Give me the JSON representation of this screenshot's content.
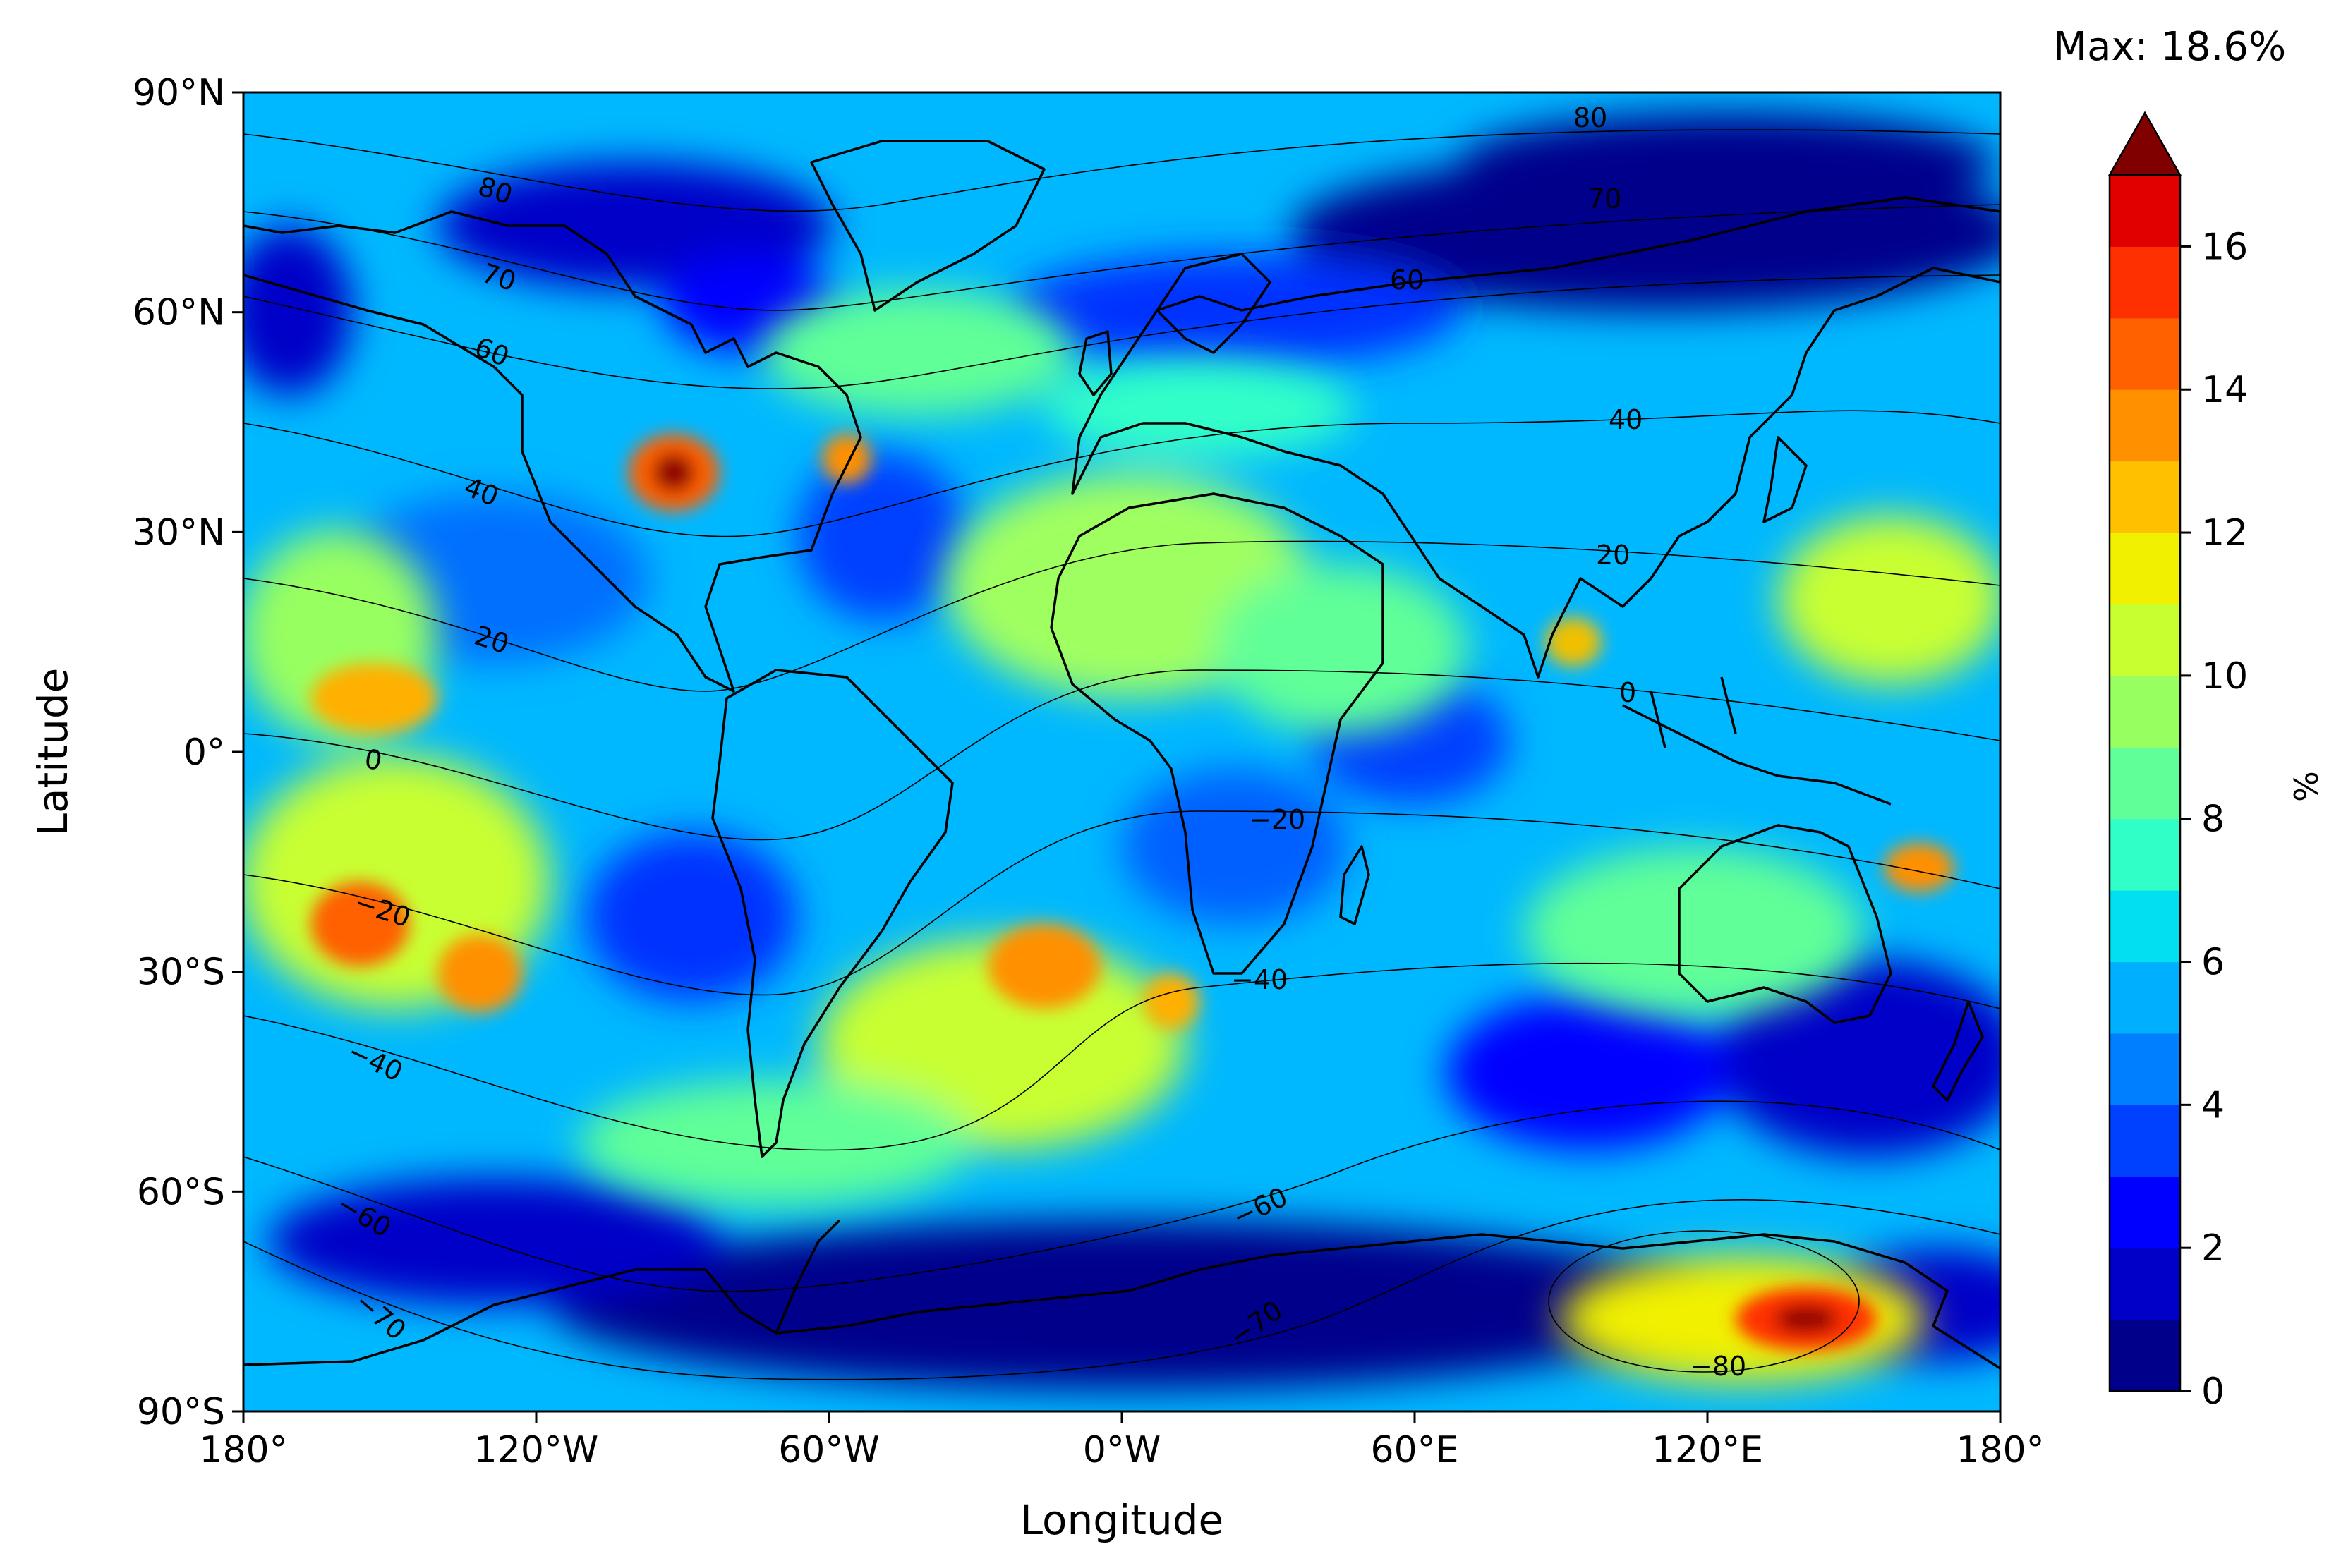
{
  "map": {
    "xlabel": "Longitude",
    "ylabel": "Latitude",
    "x_ticks": [
      {
        "lon": -180,
        "label": "180°"
      },
      {
        "lon": -120,
        "label": "120°W"
      },
      {
        "lon": -60,
        "label": "60°W"
      },
      {
        "lon": 0,
        "label": "0°W"
      },
      {
        "lon": 60,
        "label": "60°E"
      },
      {
        "lon": 120,
        "label": "120°E"
      },
      {
        "lon": 180,
        "label": "180°"
      }
    ],
    "y_ticks": [
      {
        "lat": 90,
        "label": "90°N"
      },
      {
        "lat": 60,
        "label": "60°N"
      },
      {
        "lat": 30,
        "label": "30°N"
      },
      {
        "lat": 0,
        "label": "0°"
      },
      {
        "lat": -30,
        "label": "30°S"
      },
      {
        "lat": -60,
        "label": "60°S"
      },
      {
        "lat": -90,
        "label": "90°S"
      }
    ],
    "lon_range": [
      -180,
      180
    ],
    "lat_range": [
      -90,
      90
    ],
    "projection": "plate carree"
  },
  "colorbar": {
    "label": "%",
    "max_text": "Max: 18.6%",
    "vmin": 0,
    "vmax": 17,
    "extend": "max",
    "levels": 17,
    "colors": [
      "#00008b",
      "#0000c8",
      "#0000ff",
      "#0040ff",
      "#0080ff",
      "#00b0ff",
      "#00e0f0",
      "#30ffc8",
      "#60ff98",
      "#98ff60",
      "#c8ff30",
      "#f0f000",
      "#ffc000",
      "#ff9000",
      "#ff6000",
      "#ff3000",
      "#e00000"
    ],
    "extend_color": "#800000",
    "ticks": [
      {
        "value": 0,
        "label": "0"
      },
      {
        "value": 2,
        "label": "2"
      },
      {
        "value": 4,
        "label": "4"
      },
      {
        "value": 6,
        "label": "6"
      },
      {
        "value": 8,
        "label": "8"
      },
      {
        "value": 10,
        "label": "10"
      },
      {
        "value": 12,
        "label": "12"
      },
      {
        "value": 14,
        "label": "14"
      },
      {
        "value": 16,
        "label": "16"
      }
    ]
  },
  "contour_labels": [
    "80",
    "70",
    "60",
    "40",
    "20",
    "0",
    "−20",
    "−40",
    "−60",
    "−70",
    "−80"
  ],
  "hotspots": [
    {
      "lon": -90,
      "lat": 38,
      "value": 18.6
    },
    {
      "lon": 145,
      "lat": -78,
      "value": 17
    },
    {
      "lon": -160,
      "lat": -25,
      "value": 14
    },
    {
      "lon": -140,
      "lat": -32,
      "value": 13
    },
    {
      "lon": -10,
      "lat": -32,
      "value": 13
    },
    {
      "lon": -155,
      "lat": 10,
      "value": 12
    },
    {
      "lon": -57,
      "lat": 40,
      "value": 13
    },
    {
      "lon": 160,
      "lat": -15,
      "value": 12
    }
  ]
}
